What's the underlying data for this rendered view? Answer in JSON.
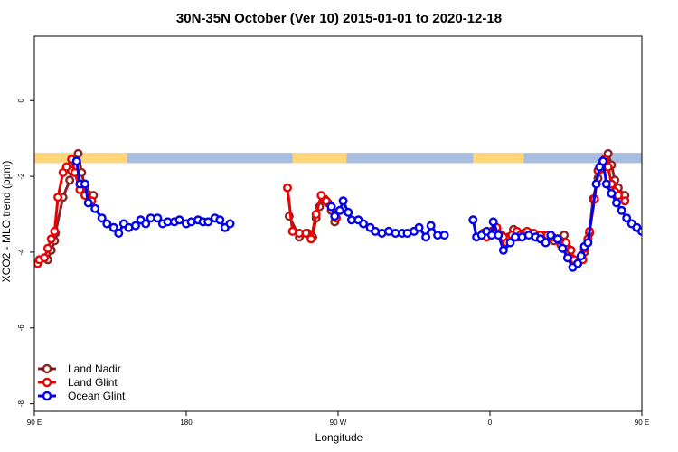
{
  "chart_data": {
    "type": "line",
    "title": "30N-35N October (Ver 10)   2015-01-01 to 2020-12-18",
    "xlabel": "Longitude",
    "ylabel": "XCO2 - MLO trend (ppm)",
    "xlim": [
      90,
      450
    ],
    "ylim": [
      -8.2,
      1.7
    ],
    "x_ticks": [
      {
        "value": 90,
        "label": "90 E"
      },
      {
        "value": 180,
        "label": "180"
      },
      {
        "value": 270,
        "label": "90 W"
      },
      {
        "value": 360,
        "label": "0"
      },
      {
        "value": 450,
        "label": "90 E"
      },
      {
        "value": 540,
        "label": "180"
      }
    ],
    "y_ticks": [
      {
        "value": 0,
        "label": "0"
      },
      {
        "value": -2,
        "label": "-2"
      },
      {
        "value": -4,
        "label": "-4"
      },
      {
        "value": -6,
        "label": "-6"
      },
      {
        "value": -8,
        "label": "-8"
      }
    ],
    "legend": {
      "position": "bottom-left",
      "entries": [
        {
          "name": "Land Nadir",
          "color": "#8b2323"
        },
        {
          "name": "Land Glint",
          "color": "#ee0000"
        },
        {
          "name": "Ocean Glint",
          "color": "#0000ee"
        }
      ]
    },
    "surface_band": {
      "y_top": -1.38,
      "y_bottom": -1.65,
      "land_color": "#ffd779",
      "ocean_color": "#a8bde0",
      "land_ranges": [
        [
          90,
          145
        ],
        [
          243,
          275
        ],
        [
          350,
          380
        ],
        [
          450,
          505
        ]
      ]
    },
    "series": [
      {
        "name": "Land Nadir",
        "color": "#8b2323",
        "segments": [
          [
            [
              98,
              -4.2
            ],
            [
              100,
              -3.95
            ],
            [
              102,
              -3.7
            ],
            [
              102.5,
              -3.5
            ],
            [
              107,
              -2.55
            ],
            [
              111,
              -2.1
            ],
            [
              112,
              -1.85
            ],
            [
              116,
              -1.4
            ],
            [
              118,
              -1.9
            ],
            [
              120,
              -2.3
            ],
            [
              125,
              -2.5
            ]
          ],
          [
            [
              241,
              -3.05
            ],
            [
              247,
              -3.6
            ],
            [
              252,
              -3.5
            ],
            [
              255,
              -3.6
            ],
            [
              257,
              -3.1
            ],
            [
              259,
              -2.8
            ],
            [
              262,
              -2.6
            ],
            [
              264,
              -2.7
            ],
            [
              266,
              -2.9
            ],
            [
              268,
              -3.2
            ]
          ],
          [
            [
              356,
              -3.5
            ],
            [
              358,
              -3.55
            ],
            [
              361,
              -3.45
            ],
            [
              364,
              -3.4
            ],
            [
              367,
              -3.55
            ],
            [
              369,
              -3.8
            ],
            [
              371,
              -3.6
            ],
            [
              374,
              -3.4
            ],
            [
              377,
              -3.6
            ],
            [
              380,
              -3.5
            ],
            [
              384,
              -3.5
            ],
            [
              388,
              -3.55
            ],
            [
              392,
              -3.55
            ],
            [
              395,
              -3.6
            ],
            [
              398,
              -3.7
            ],
            [
              401,
              -3.65
            ],
            [
              404,
              -3.55
            ],
            [
              406,
              -3.9
            ],
            [
              408,
              -4.15
            ],
            [
              414,
              -4.2
            ],
            [
              416,
              -4.0
            ],
            [
              418,
              -3.7
            ],
            [
              419,
              -3.5
            ],
            [
              421,
              -2.6
            ],
            [
              424,
              -2.05
            ],
            [
              426,
              -1.8
            ],
            [
              428,
              -1.65
            ],
            [
              430,
              -1.4
            ],
            [
              432,
              -1.7
            ],
            [
              434,
              -2.1
            ],
            [
              436,
              -2.3
            ],
            [
              440,
              -2.5
            ]
          ]
        ]
      },
      {
        "name": "Land Glint",
        "color": "#ee0000",
        "segments": [
          [
            [
              92,
              -4.3
            ],
            [
              93,
              -4.2
            ],
            [
              96,
              -4.15
            ],
            [
              98,
              -3.9
            ],
            [
              100,
              -3.65
            ],
            [
              102,
              -3.45
            ],
            [
              104,
              -2.55
            ],
            [
              107,
              -1.9
            ],
            [
              109,
              -1.75
            ],
            [
              112,
              -1.55
            ],
            [
              114,
              -1.9
            ],
            [
              117,
              -2.35
            ],
            [
              120,
              -2.5
            ],
            [
              124,
              -2.65
            ]
          ],
          [
            [
              240,
              -2.3
            ],
            [
              243,
              -3.45
            ],
            [
              247,
              -3.5
            ],
            [
              251,
              -3.5
            ],
            [
              254,
              -3.65
            ],
            [
              257,
              -3.0
            ],
            [
              260,
              -2.5
            ],
            [
              263,
              -2.65
            ],
            [
              266,
              -2.8
            ],
            [
              269,
              -3.1
            ]
          ],
          [
            [
              356,
              -3.5
            ],
            [
              358,
              -3.6
            ],
            [
              362,
              -3.45
            ],
            [
              364,
              -3.35
            ],
            [
              368,
              -3.6
            ],
            [
              370,
              -3.75
            ],
            [
              373,
              -3.55
            ],
            [
              376,
              -3.45
            ],
            [
              378,
              -3.55
            ],
            [
              382,
              -3.45
            ],
            [
              386,
              -3.5
            ],
            [
              390,
              -3.55
            ],
            [
              394,
              -3.55
            ],
            [
              397,
              -3.6
            ],
            [
              400,
              -3.65
            ],
            [
              402,
              -3.8
            ],
            [
              405,
              -3.75
            ],
            [
              408,
              -3.95
            ],
            [
              410,
              -4.2
            ],
            [
              412,
              -4.3
            ],
            [
              415,
              -4.2
            ],
            [
              416,
              -3.9
            ],
            [
              418,
              -3.65
            ],
            [
              419,
              -3.45
            ],
            [
              422,
              -2.6
            ],
            [
              424,
              -1.85
            ],
            [
              426,
              -1.7
            ],
            [
              428,
              -1.55
            ],
            [
              430,
              -1.75
            ],
            [
              432,
              -2.2
            ],
            [
              434,
              -2.4
            ],
            [
              436,
              -2.5
            ],
            [
              440,
              -2.65
            ]
          ]
        ]
      },
      {
        "name": "Ocean Glint",
        "color": "#0000ee",
        "segments": [
          [
            [
              115,
              -1.6
            ],
            [
              117,
              -2.2
            ],
            [
              120,
              -2.2
            ],
            [
              122,
              -2.7
            ],
            [
              126,
              -2.85
            ],
            [
              130,
              -3.1
            ],
            [
              133,
              -3.25
            ],
            [
              137,
              -3.35
            ],
            [
              140,
              -3.5
            ],
            [
              143,
              -3.25
            ],
            [
              146,
              -3.35
            ],
            [
              150,
              -3.3
            ],
            [
              153,
              -3.15
            ],
            [
              156,
              -3.25
            ],
            [
              159,
              -3.1
            ],
            [
              163,
              -3.1
            ],
            [
              166,
              -3.25
            ],
            [
              169,
              -3.2
            ],
            [
              173,
              -3.2
            ],
            [
              176,
              -3.15
            ],
            [
              180,
              -3.25
            ],
            [
              183,
              -3.2
            ],
            [
              187,
              -3.15
            ],
            [
              190,
              -3.2
            ],
            [
              193,
              -3.2
            ],
            [
              197,
              -3.1
            ],
            [
              200,
              -3.15
            ],
            [
              203,
              -3.35
            ],
            [
              206,
              -3.25
            ]
          ],
          [
            [
              266,
              -2.8
            ],
            [
              268,
              -3.05
            ],
            [
              271,
              -2.9
            ],
            [
              273,
              -2.65
            ],
            [
              276,
              -2.95
            ],
            [
              278,
              -3.15
            ],
            [
              282,
              -3.15
            ],
            [
              285,
              -3.25
            ],
            [
              289,
              -3.35
            ],
            [
              292,
              -3.45
            ],
            [
              296,
              -3.5
            ],
            [
              300,
              -3.45
            ],
            [
              304,
              -3.5
            ],
            [
              308,
              -3.5
            ],
            [
              311,
              -3.5
            ],
            [
              315,
              -3.45
            ],
            [
              318,
              -3.35
            ],
            [
              322,
              -3.6
            ],
            [
              325,
              -3.3
            ],
            [
              329,
              -3.55
            ],
            [
              333,
              -3.55
            ]
          ],
          [
            [
              350,
              -3.15
            ],
            [
              352,
              -3.6
            ],
            [
              355,
              -3.55
            ],
            [
              358,
              -3.45
            ],
            [
              361,
              -3.55
            ],
            [
              362,
              -3.2
            ],
            [
              365,
              -3.55
            ],
            [
              368,
              -3.95
            ],
            [
              372,
              -3.75
            ],
            [
              375,
              -3.6
            ],
            [
              379,
              -3.6
            ],
            [
              383,
              -3.55
            ],
            [
              387,
              -3.6
            ],
            [
              390,
              -3.65
            ],
            [
              393,
              -3.75
            ],
            [
              396,
              -3.55
            ],
            [
              400,
              -3.65
            ],
            [
              403,
              -3.9
            ],
            [
              406,
              -4.15
            ],
            [
              409,
              -4.4
            ],
            [
              412,
              -4.3
            ],
            [
              414,
              -4.1
            ],
            [
              416,
              -3.85
            ],
            [
              418,
              -3.75
            ],
            [
              423,
              -2.2
            ],
            [
              425,
              -1.75
            ],
            [
              427,
              -1.6
            ],
            [
              429,
              -2.2
            ],
            [
              432,
              -2.45
            ],
            [
              435,
              -2.7
            ],
            [
              438,
              -2.9
            ],
            [
              441,
              -3.1
            ],
            [
              444,
              -3.25
            ],
            [
              447,
              -3.35
            ],
            [
              450,
              -3.45
            ],
            [
              453,
              -3.25
            ],
            [
              456,
              -3.3
            ],
            [
              459,
              -3.3
            ],
            [
              462,
              -3.15
            ]
          ]
        ]
      }
    ]
  }
}
